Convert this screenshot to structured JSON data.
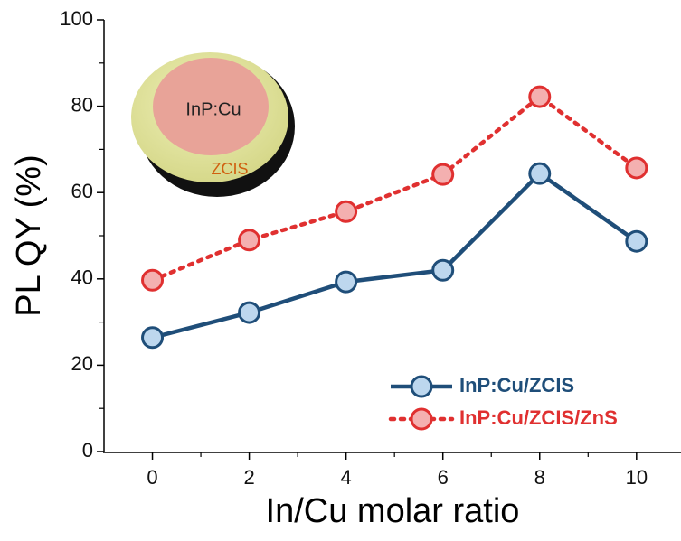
{
  "chart_data": {
    "type": "line",
    "x_label": "In/Cu molar ratio",
    "y_label": "PL QY (%)",
    "x": [
      0,
      2,
      4,
      6,
      8,
      10
    ],
    "series": [
      {
        "name": "InP:Cu/ZCIS",
        "color": "#1f4e79",
        "marker_fill": "#bdd7ee",
        "dash": "solid",
        "values": [
          26.4,
          32.2,
          39.3,
          42.0,
          64.4,
          48.7
        ]
      },
      {
        "name": "InP:Cu/ZCIS/ZnS",
        "color": "#e03030",
        "marker_fill": "#f4b0b0",
        "dash": "dotted",
        "values": [
          39.7,
          49.0,
          55.6,
          64.2,
          82.2,
          65.7
        ]
      }
    ],
    "xlim": [
      -1,
      10.9
    ],
    "ylim": [
      0,
      100
    ],
    "xticks": [
      0,
      2,
      4,
      6,
      8,
      10
    ],
    "yticks": [
      0,
      20,
      40,
      60,
      80,
      100
    ],
    "xminorticks": [
      1,
      3,
      5,
      7,
      9
    ],
    "yminorticks": [
      10,
      30,
      50,
      70,
      90
    ],
    "legend": "lower right",
    "inset": {
      "core": "InP:Cu",
      "shell": "ZCIS"
    }
  }
}
